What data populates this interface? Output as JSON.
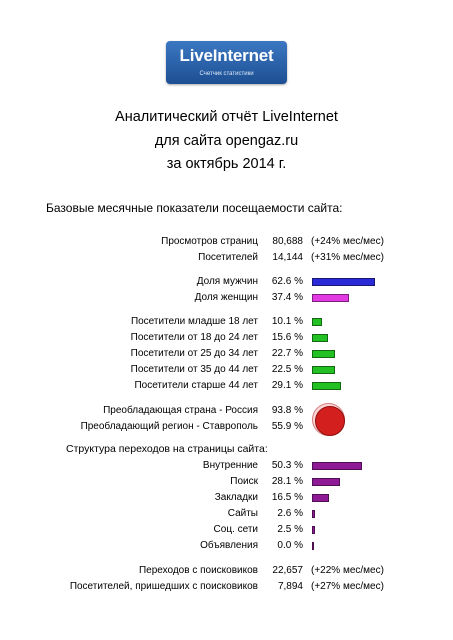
{
  "logo": {
    "name": "LiveInternet",
    "subtitle": "Счетчик статистики"
  },
  "title": {
    "line1": "Аналитический отчёт LiveInternet",
    "line2": "для сайта opengaz.ru",
    "line3": "за октябрь 2014 г."
  },
  "section_basic": "Базовые месячные показатели посещаемости сайта:",
  "pageviews": {
    "label": "Просмотров страниц",
    "value": "80,688",
    "change": "(+24% мес/мес)"
  },
  "visitors": {
    "label": "Посетителей",
    "value": "14,144",
    "change": "(+31% мес/мес)"
  },
  "gender": [
    {
      "label": "Доля мужчин",
      "value": "62.6 %",
      "share": 0.626,
      "color": "#2a2ad6"
    },
    {
      "label": "Доля женщин",
      "value": "37.4 %",
      "share": 0.374,
      "color": "#e23ae2"
    }
  ],
  "age": [
    {
      "label": "Посетители младше 18 лет",
      "value": "10.1 %",
      "share": 0.101,
      "color": "#22c022"
    },
    {
      "label": "Посетители от 18 до 24 лет",
      "value": "15.6 %",
      "share": 0.156,
      "color": "#22c022"
    },
    {
      "label": "Посетители от 25 до 34 лет",
      "value": "22.7 %",
      "share": 0.227,
      "color": "#22c022"
    },
    {
      "label": "Посетители от 35 до 44 лет",
      "value": "22.5 %",
      "share": 0.225,
      "color": "#22c022"
    },
    {
      "label": "Посетители старше 44 лет",
      "value": "29.1 %",
      "share": 0.291,
      "color": "#22c022"
    }
  ],
  "geo": {
    "country": {
      "label": "Преобладающая страна - Россия",
      "value": "93.8 %",
      "share": 0.938
    },
    "region": {
      "label": "Преобладающий регион - Ставрополь",
      "value": "55.9 %",
      "share": 0.559
    }
  },
  "section_traffic": "Структура переходов на страницы сайта:",
  "traffic": [
    {
      "label": "Внутренние",
      "value": "50.3 %",
      "share": 0.503,
      "color": "#8e1a96"
    },
    {
      "label": "Поиск",
      "value": "28.1 %",
      "share": 0.281,
      "color": "#8e1a96"
    },
    {
      "label": "Закладки",
      "value": "16.5 %",
      "share": 0.165,
      "color": "#8e1a96"
    },
    {
      "label": "Сайты",
      "value": "2.6 %",
      "share": 0.026,
      "color": "#8e1a96"
    },
    {
      "label": "Соц. сети",
      "value": "2.5 %",
      "share": 0.025,
      "color": "#8e1a96"
    },
    {
      "label": "Объявления",
      "value": "0.0 %",
      "share": 0.0,
      "color": "#8e1a96"
    }
  ],
  "search_referrals": {
    "label": "Переходов с поисковиков",
    "value": "22,657",
    "change": "(+22% мес/мес)"
  },
  "search_visitors": {
    "label": "Посетителей, пришедших с поисковиков",
    "value": "7,894",
    "change": "(+27% мес/мес)"
  }
}
